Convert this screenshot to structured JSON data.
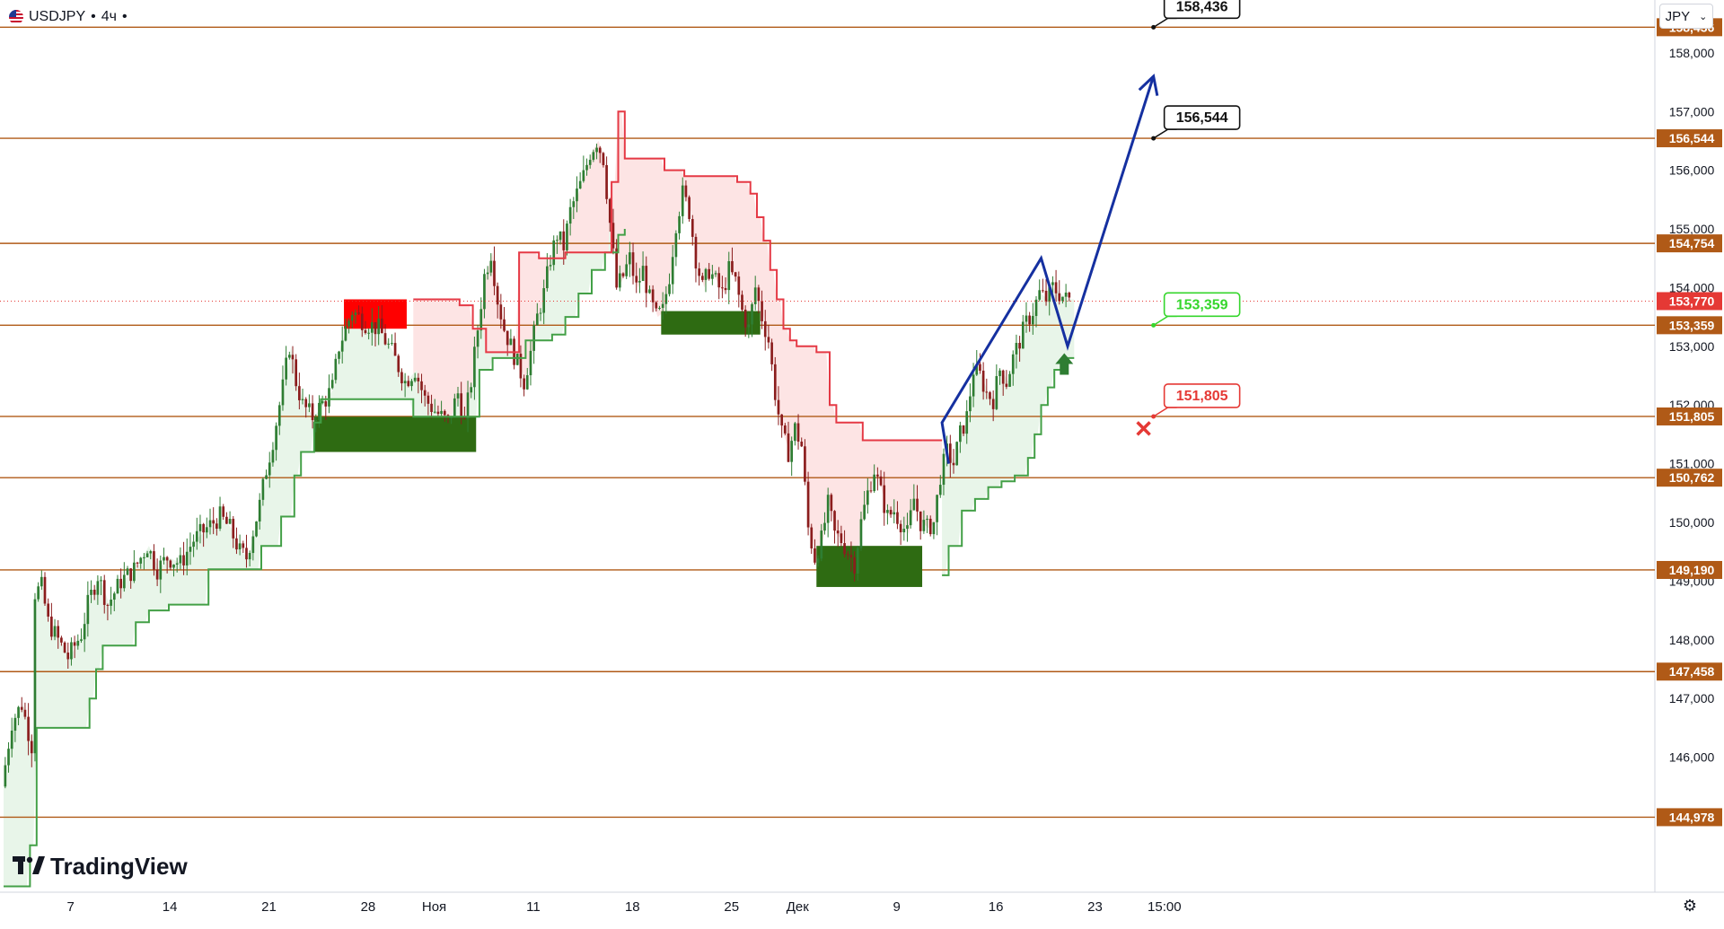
{
  "header": {
    "symbol": "USDJPY",
    "interval": "4ч",
    "separator": "•"
  },
  "currency_button": {
    "label": "JPY",
    "icon": "chevron-down-icon"
  },
  "brand": {
    "name": "TradingView",
    "icon": "tradingview-logo-icon"
  },
  "settings": {
    "icon": "gear-icon"
  },
  "colors": {
    "level": "#b05a17",
    "bull": "#2e7d32",
    "bear": "#ef5350",
    "bull_line": "#43a047",
    "bear_line": "#e53945",
    "bull_fill": "#e8f5e9",
    "bear_fill": "#fde4e4",
    "zone_green": "#2e6b12",
    "zone_red": "#ff0000",
    "forecast": "#1530a0",
    "price_tag": "#e53935",
    "stop": "#e53935",
    "target": "#111111",
    "entry": "#35d62c"
  },
  "chart_data": {
    "type": "candlestick",
    "title": "",
    "symbol": "USDJPY",
    "timeframe": "4ч",
    "currency": "JPY",
    "last_price": "153,770",
    "y_axis": {
      "range": [
        143.7,
        158.9
      ],
      "unit": "JPY",
      "ticks": [
        "146,000",
        "147,000",
        "148,000",
        "149,000",
        "150,000",
        "151,000",
        "152,000",
        "153,000",
        "154,000",
        "155,000",
        "156,000",
        "157,000",
        "158,000"
      ]
    },
    "x_axis": {
      "ticks": [
        {
          "label": "7",
          "bar": 4
        },
        {
          "label": "14",
          "bar": 34
        },
        {
          "label": "21",
          "bar": 64
        },
        {
          "label": "28",
          "bar": 94
        },
        {
          "label": "Ноя",
          "bar": 114
        },
        {
          "label": "11",
          "bar": 144
        },
        {
          "label": "18",
          "bar": 174
        },
        {
          "label": "25",
          "bar": 204
        },
        {
          "label": "Дек",
          "bar": 224
        },
        {
          "label": "9",
          "bar": 254
        },
        {
          "label": "16",
          "bar": 284
        },
        {
          "label": "23",
          "bar": 314
        },
        {
          "label": "15:00",
          "bar": 335
        }
      ],
      "last_bar": 372
    },
    "price_path": [
      [
        0,
        145.5
      ],
      [
        3,
        146.6
      ],
      [
        6,
        146.9
      ],
      [
        9,
        146.2
      ],
      [
        10,
        148.8
      ],
      [
        12,
        148.9
      ],
      [
        14,
        148.3
      ],
      [
        18,
        147.9
      ],
      [
        20,
        147.7
      ],
      [
        24,
        148.1
      ],
      [
        26,
        148.6
      ],
      [
        29,
        149.1
      ],
      [
        32,
        148.6
      ],
      [
        36,
        149.0
      ],
      [
        40,
        149.2
      ],
      [
        44,
        149.6
      ],
      [
        47,
        149.2
      ],
      [
        50,
        149.4
      ],
      [
        54,
        149.3
      ],
      [
        58,
        149.7
      ],
      [
        62,
        149.9
      ],
      [
        66,
        150.1
      ],
      [
        69,
        149.9
      ],
      [
        72,
        149.5
      ],
      [
        74,
        149.4
      ],
      [
        78,
        150.3
      ],
      [
        80,
        150.9
      ],
      [
        82,
        151.4
      ],
      [
        85,
        152.3
      ],
      [
        87,
        153.0
      ],
      [
        89,
        152.4
      ],
      [
        91,
        152.0
      ],
      [
        94,
        151.8
      ],
      [
        98,
        152.1
      ],
      [
        100,
        152.3
      ],
      [
        102,
        153.0
      ],
      [
        104,
        153.3
      ],
      [
        106,
        153.6
      ],
      [
        110,
        153.4
      ],
      [
        114,
        153.3
      ],
      [
        118,
        152.9
      ],
      [
        122,
        152.4
      ],
      [
        125,
        152.6
      ],
      [
        128,
        152.1
      ],
      [
        131,
        151.9
      ],
      [
        135,
        151.7
      ],
      [
        138,
        152.2
      ],
      [
        140,
        151.7
      ],
      [
        142,
        152.4
      ],
      [
        144,
        153.3
      ],
      [
        146,
        154.2
      ],
      [
        148,
        154.6
      ],
      [
        150,
        153.8
      ],
      [
        152,
        153.3
      ],
      [
        154,
        153.0
      ],
      [
        156,
        152.7
      ],
      [
        158,
        152.4
      ],
      [
        160,
        152.9
      ],
      [
        162,
        153.5
      ],
      [
        164,
        153.9
      ],
      [
        166,
        154.5
      ],
      [
        168,
        154.9
      ],
      [
        170,
        154.7
      ],
      [
        172,
        155.3
      ],
      [
        174,
        155.6
      ],
      [
        176,
        155.9
      ],
      [
        178,
        156.3
      ],
      [
        180,
        156.5
      ],
      [
        182,
        156.2
      ],
      [
        184,
        155.1
      ],
      [
        186,
        154.0
      ],
      [
        188,
        154.2
      ],
      [
        190,
        154.5
      ],
      [
        192,
        154.0
      ],
      [
        194,
        154.3
      ],
      [
        196,
        153.8
      ],
      [
        198,
        153.5
      ],
      [
        200,
        153.6
      ],
      [
        202,
        154.2
      ],
      [
        204,
        155.1
      ],
      [
        206,
        155.6
      ],
      [
        208,
        155.3
      ],
      [
        210,
        154.5
      ],
      [
        212,
        154.0
      ],
      [
        214,
        154.3
      ],
      [
        216,
        154.1
      ],
      [
        218,
        153.9
      ],
      [
        220,
        154.3
      ],
      [
        222,
        154.1
      ],
      [
        224,
        153.6
      ],
      [
        226,
        153.3
      ],
      [
        228,
        154.0
      ],
      [
        230,
        153.5
      ],
      [
        232,
        153.1
      ],
      [
        234,
        152.2
      ],
      [
        236,
        151.5
      ],
      [
        238,
        151.2
      ],
      [
        240,
        151.6
      ],
      [
        242,
        151.3
      ],
      [
        244,
        149.9
      ],
      [
        246,
        149.4
      ],
      [
        248,
        149.7
      ],
      [
        250,
        150.3
      ],
      [
        252,
        149.8
      ],
      [
        254,
        149.7
      ],
      [
        256,
        149.5
      ],
      [
        258,
        149.3
      ],
      [
        260,
        150.0
      ],
      [
        262,
        150.5
      ],
      [
        264,
        150.9
      ],
      [
        266,
        150.5
      ],
      [
        268,
        150.1
      ],
      [
        270,
        150.2
      ],
      [
        272,
        150.0
      ],
      [
        274,
        149.8
      ],
      [
        276,
        150.4
      ],
      [
        278,
        150.0
      ],
      [
        280,
        149.9
      ],
      [
        282,
        150.0
      ],
      [
        284,
        150.8
      ],
      [
        286,
        151.2
      ],
      [
        288,
        151.0
      ],
      [
        290,
        151.5
      ],
      [
        292,
        151.8
      ],
      [
        294,
        152.6
      ],
      [
        296,
        152.5
      ],
      [
        298,
        152.2
      ],
      [
        300,
        152.1
      ],
      [
        302,
        152.6
      ],
      [
        304,
        152.4
      ],
      [
        306,
        152.8
      ],
      [
        308,
        153.1
      ],
      [
        310,
        153.4
      ],
      [
        312,
        153.6
      ],
      [
        314,
        153.9
      ],
      [
        316,
        153.8
      ],
      [
        318,
        154.0
      ],
      [
        320,
        153.9
      ],
      [
        322,
        153.8
      ]
    ],
    "support_line": [
      [
        0,
        143.8
      ],
      [
        8,
        144.5
      ],
      [
        10,
        146.5
      ],
      [
        24,
        146.5
      ],
      [
        26,
        147.0
      ],
      [
        28,
        147.5
      ],
      [
        30,
        147.9
      ],
      [
        38,
        147.9
      ],
      [
        40,
        148.3
      ],
      [
        44,
        148.5
      ],
      [
        50,
        148.6
      ],
      [
        60,
        148.6
      ],
      [
        62,
        149.2
      ],
      [
        76,
        149.2
      ],
      [
        78,
        149.6
      ],
      [
        84,
        150.1
      ],
      [
        88,
        150.8
      ],
      [
        90,
        151.2
      ],
      [
        94,
        151.7
      ],
      [
        96,
        152.1
      ],
      [
        120,
        152.1
      ],
      [
        124,
        151.8
      ],
      [
        140,
        151.8
      ],
      [
        144,
        152.6
      ],
      [
        148,
        152.8
      ],
      [
        156,
        152.8
      ],
      [
        158,
        153.1
      ],
      [
        166,
        153.2
      ],
      [
        170,
        153.5
      ],
      [
        174,
        153.9
      ],
      [
        178,
        154.3
      ],
      [
        182,
        154.6
      ],
      [
        186,
        154.9
      ],
      [
        188,
        155.0
      ]
    ],
    "resistance_line": [
      [
        124,
        153.8
      ],
      [
        132,
        153.8
      ],
      [
        138,
        153.7
      ],
      [
        142,
        153.3
      ],
      [
        146,
        152.9
      ],
      [
        156,
        154.6
      ],
      [
        162,
        154.5
      ],
      [
        170,
        154.6
      ],
      [
        174,
        154.6
      ],
      [
        184,
        155.8
      ],
      [
        186,
        157.0
      ],
      [
        188,
        156.2
      ],
      [
        194,
        156.2
      ],
      [
        200,
        156.0
      ],
      [
        206,
        155.9
      ],
      [
        216,
        155.9
      ],
      [
        222,
        155.8
      ],
      [
        226,
        155.6
      ],
      [
        228,
        155.2
      ],
      [
        230,
        154.8
      ],
      [
        232,
        154.3
      ],
      [
        234,
        153.8
      ],
      [
        236,
        153.3
      ],
      [
        238,
        153.1
      ],
      [
        240,
        153.0
      ],
      [
        246,
        152.9
      ],
      [
        250,
        152.0
      ],
      [
        252,
        151.7
      ],
      [
        258,
        151.7
      ],
      [
        260,
        151.4
      ],
      [
        276,
        151.4
      ],
      [
        284,
        151.4
      ]
    ],
    "support_line_2": [
      [
        284,
        149.1
      ],
      [
        286,
        149.6
      ],
      [
        290,
        150.2
      ],
      [
        294,
        150.4
      ],
      [
        298,
        150.6
      ],
      [
        302,
        150.7
      ],
      [
        306,
        150.8
      ],
      [
        310,
        151.1
      ],
      [
        312,
        151.5
      ],
      [
        314,
        152.0
      ],
      [
        316,
        152.3
      ],
      [
        318,
        152.6
      ],
      [
        322,
        152.8
      ],
      [
        324,
        152.8
      ]
    ],
    "zones": [
      {
        "type": "demand",
        "bar_from": 94,
        "bar_to": 143,
        "price_from": 151.2,
        "price_to": 151.8
      },
      {
        "type": "supply",
        "bar_from": 103,
        "bar_to": 122,
        "price_from": 153.3,
        "price_to": 153.8
      },
      {
        "type": "demand",
        "bar_from": 199,
        "bar_to": 229,
        "price_from": 153.2,
        "price_to": 153.6
      },
      {
        "type": "demand",
        "bar_from": 246,
        "bar_to": 278,
        "price_from": 148.9,
        "price_to": 149.6
      }
    ],
    "levels": [
      {
        "price": 158.436,
        "label": "158,436"
      },
      {
        "price": 156.544,
        "label": "156,544"
      },
      {
        "price": 154.754,
        "label": "154,754"
      },
      {
        "price": 153.359,
        "label": "153,359"
      },
      {
        "price": 151.805,
        "label": "151,805"
      },
      {
        "price": 150.762,
        "label": "150,762"
      },
      {
        "price": 149.19,
        "label": "149,190"
      },
      {
        "price": 147.458,
        "label": "147,458"
      },
      {
        "price": 144.978,
        "label": "144,978"
      }
    ],
    "forecast_path": [
      [
        286,
        151.0
      ],
      [
        284,
        151.7
      ],
      [
        314,
        154.5
      ],
      [
        322,
        153.0
      ],
      [
        348,
        157.6
      ]
    ],
    "callouts": [
      {
        "label": "158,436",
        "price": 158.436,
        "bar": 348,
        "kind": "target"
      },
      {
        "label": "156,544",
        "price": 156.544,
        "bar": 348,
        "kind": "target"
      },
      {
        "label": "153,359",
        "price": 153.359,
        "bar": 348,
        "kind": "entry"
      },
      {
        "label": "151,805",
        "price": 151.805,
        "bar": 348,
        "kind": "stop"
      }
    ],
    "markers": [
      {
        "type": "buy-arrow",
        "bar": 321,
        "price": 152.7
      },
      {
        "type": "stop-cross",
        "bar": 345,
        "price": 151.6
      }
    ]
  }
}
